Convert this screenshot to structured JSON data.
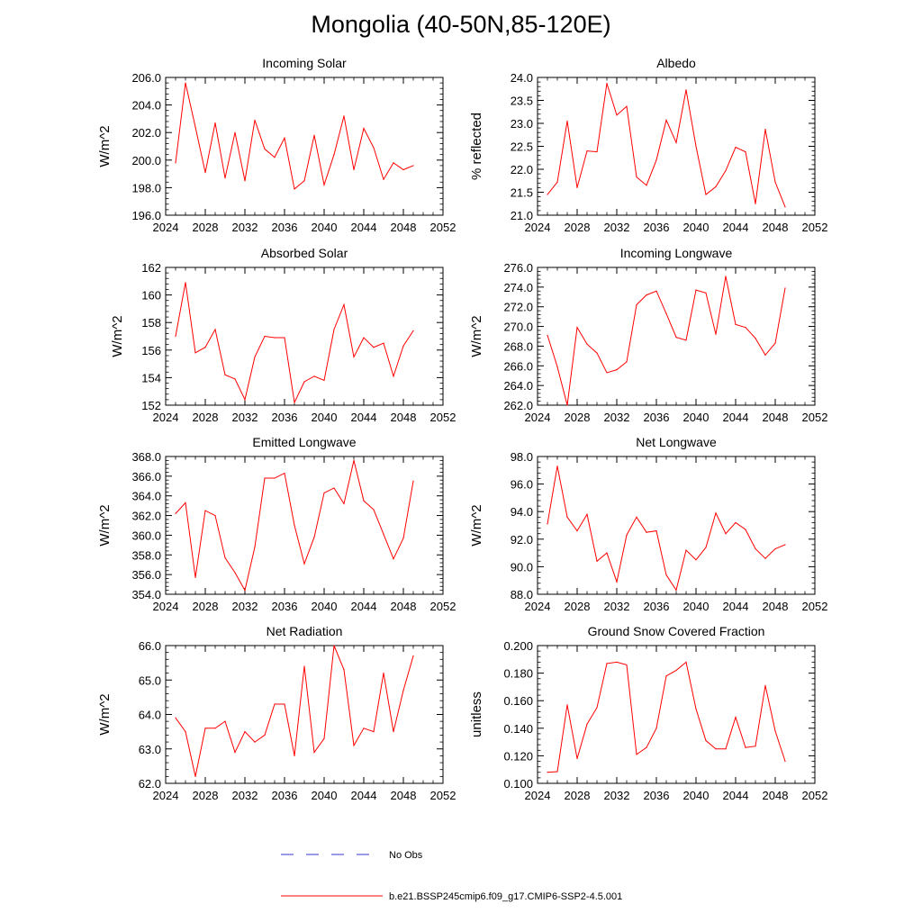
{
  "page_title": "Mongolia (40-50N,85-120E)",
  "legend": {
    "obs_label": "No Obs",
    "obs_color": "#3333cc",
    "model_label": "b.e21.BSSP245cmip6.f09_g17.CMIP6-SSP2-4.5.001",
    "model_color": "#ff0000"
  },
  "x_ticks": [
    "2024",
    "2028",
    "2032",
    "2036",
    "2040",
    "2044",
    "2048",
    "2052"
  ],
  "chart_data": [
    {
      "type": "line",
      "title": "Incoming Solar",
      "ylabel": "W/m^2",
      "xlim": [
        2024,
        2052
      ],
      "ylim": [
        196,
        206
      ],
      "yticks": [
        "196.0",
        "198.0",
        "200.0",
        "202.0",
        "204.0",
        "206.0"
      ],
      "x": [
        2025,
        2026,
        2027,
        2028,
        2029,
        2030,
        2031,
        2032,
        2033,
        2034,
        2035,
        2036,
        2037,
        2038,
        2039,
        2040,
        2041,
        2042,
        2043,
        2044,
        2045,
        2046,
        2047,
        2048,
        2049
      ],
      "series": [
        {
          "values": [
            199.8,
            205.6,
            202.4,
            199.1,
            202.7,
            198.7,
            202.0,
            198.5,
            202.9,
            200.8,
            200.2,
            201.6,
            197.9,
            198.5,
            201.8,
            198.2,
            200.4,
            203.2,
            199.3,
            202.3,
            200.9,
            198.6,
            199.8,
            199.3,
            199.6
          ]
        }
      ]
    },
    {
      "type": "line",
      "title": "Albedo",
      "ylabel": "% reflected",
      "xlim": [
        2024,
        2052
      ],
      "ylim": [
        21.0,
        24.0
      ],
      "yticks": [
        "21.0",
        "21.5",
        "22.0",
        "22.5",
        "23.0",
        "23.5",
        "24.0"
      ],
      "x": [
        2025,
        2026,
        2027,
        2028,
        2029,
        2030,
        2031,
        2032,
        2033,
        2034,
        2035,
        2036,
        2037,
        2038,
        2039,
        2040,
        2041,
        2042,
        2043,
        2044,
        2045,
        2046,
        2047,
        2048,
        2049
      ],
      "series": [
        {
          "values": [
            21.45,
            21.72,
            23.05,
            21.6,
            22.4,
            22.38,
            23.87,
            23.18,
            23.37,
            21.83,
            21.65,
            22.2,
            23.07,
            22.58,
            23.73,
            22.5,
            21.45,
            21.62,
            21.97,
            22.48,
            22.38,
            21.25,
            22.87,
            21.72,
            21.18
          ]
        }
      ]
    },
    {
      "type": "line",
      "title": "Absorbed Solar",
      "ylabel": "W/m^2",
      "xlim": [
        2024,
        2052
      ],
      "ylim": [
        152,
        162
      ],
      "yticks": [
        "152",
        "154",
        "156",
        "158",
        "160",
        "162"
      ],
      "x": [
        2025,
        2026,
        2027,
        2028,
        2029,
        2030,
        2031,
        2032,
        2033,
        2034,
        2035,
        2036,
        2037,
        2038,
        2039,
        2040,
        2041,
        2042,
        2043,
        2044,
        2045,
        2046,
        2047,
        2048,
        2049
      ],
      "series": [
        {
          "values": [
            157.0,
            160.9,
            155.8,
            156.2,
            157.5,
            154.2,
            153.9,
            152.4,
            155.5,
            157.0,
            156.9,
            156.9,
            152.2,
            153.7,
            154.1,
            153.8,
            157.5,
            159.3,
            155.5,
            156.9,
            156.2,
            156.5,
            154.1,
            156.3,
            157.4
          ]
        }
      ]
    },
    {
      "type": "line",
      "title": "Incoming Longwave",
      "ylabel": "W/m^2",
      "xlim": [
        2024,
        2052
      ],
      "ylim": [
        262,
        276
      ],
      "yticks": [
        "262.0",
        "264.0",
        "266.0",
        "268.0",
        "270.0",
        "272.0",
        "274.0",
        "276.0"
      ],
      "x": [
        2025,
        2026,
        2027,
        2028,
        2029,
        2030,
        2031,
        2032,
        2033,
        2034,
        2035,
        2036,
        2037,
        2038,
        2039,
        2040,
        2041,
        2042,
        2043,
        2044,
        2045,
        2046,
        2047,
        2048,
        2049
      ],
      "series": [
        {
          "values": [
            269.1,
            265.9,
            262.0,
            269.9,
            268.2,
            267.3,
            265.3,
            265.6,
            266.4,
            272.2,
            273.2,
            273.6,
            271.3,
            268.9,
            268.6,
            273.7,
            273.4,
            269.2,
            275.1,
            270.2,
            269.9,
            268.8,
            267.1,
            268.3,
            273.9
          ]
        }
      ]
    },
    {
      "type": "line",
      "title": "Emitted Longwave",
      "ylabel": "W/m^2",
      "xlim": [
        2024,
        2052
      ],
      "ylim": [
        354,
        368
      ],
      "yticks": [
        "354.0",
        "356.0",
        "358.0",
        "360.0",
        "362.0",
        "364.0",
        "366.0",
        "368.0"
      ],
      "x": [
        2025,
        2026,
        2027,
        2028,
        2029,
        2030,
        2031,
        2032,
        2033,
        2034,
        2035,
        2036,
        2037,
        2038,
        2039,
        2040,
        2041,
        2042,
        2043,
        2044,
        2045,
        2046,
        2047,
        2048,
        2049
      ],
      "series": [
        {
          "values": [
            362.2,
            363.3,
            355.7,
            362.5,
            362.0,
            357.7,
            356.2,
            354.4,
            358.8,
            365.8,
            365.8,
            366.3,
            361.0,
            357.1,
            359.8,
            364.3,
            364.8,
            363.2,
            367.6,
            363.5,
            362.6,
            360.1,
            357.6,
            359.7,
            365.5
          ]
        }
      ]
    },
    {
      "type": "line",
      "title": "Net Longwave",
      "ylabel": "W/m^2",
      "xlim": [
        2024,
        2052
      ],
      "ylim": [
        88,
        98
      ],
      "yticks": [
        "88.0",
        "90.0",
        "92.0",
        "94.0",
        "96.0",
        "98.0"
      ],
      "x": [
        2025,
        2026,
        2027,
        2028,
        2029,
        2030,
        2031,
        2032,
        2033,
        2034,
        2035,
        2036,
        2037,
        2038,
        2039,
        2040,
        2041,
        2042,
        2043,
        2044,
        2045,
        2046,
        2047,
        2048,
        2049
      ],
      "series": [
        {
          "values": [
            93.1,
            97.3,
            93.6,
            92.6,
            93.8,
            90.4,
            91.0,
            88.9,
            92.3,
            93.6,
            92.5,
            92.6,
            89.4,
            88.3,
            91.2,
            90.5,
            91.4,
            93.9,
            92.4,
            93.2,
            92.7,
            91.3,
            90.6,
            91.3,
            91.6
          ]
        }
      ]
    },
    {
      "type": "line",
      "title": "Net Radiation",
      "ylabel": "W/m^2",
      "xlim": [
        2024,
        2052
      ],
      "ylim": [
        62,
        66
      ],
      "yticks": [
        "62.0",
        "63.0",
        "64.0",
        "65.0",
        "66.0"
      ],
      "x": [
        2025,
        2026,
        2027,
        2028,
        2029,
        2030,
        2031,
        2032,
        2033,
        2034,
        2035,
        2036,
        2037,
        2038,
        2039,
        2040,
        2041,
        2042,
        2043,
        2044,
        2045,
        2046,
        2047,
        2048,
        2049
      ],
      "series": [
        {
          "values": [
            63.9,
            63.5,
            62.2,
            63.6,
            63.6,
            63.8,
            62.9,
            63.5,
            63.2,
            63.4,
            64.3,
            64.3,
            62.8,
            65.4,
            62.9,
            63.3,
            66.0,
            65.3,
            63.1,
            63.6,
            63.5,
            65.2,
            63.5,
            64.7,
            65.7
          ]
        }
      ]
    },
    {
      "type": "line",
      "title": "Ground Snow Covered Fraction",
      "ylabel": "unitless",
      "xlim": [
        2024,
        2052
      ],
      "ylim": [
        0.1,
        0.2
      ],
      "yticks": [
        "0.100",
        "0.120",
        "0.140",
        "0.160",
        "0.180",
        "0.200"
      ],
      "x": [
        2025,
        2026,
        2027,
        2028,
        2029,
        2030,
        2031,
        2032,
        2033,
        2034,
        2035,
        2036,
        2037,
        2038,
        2039,
        2040,
        2041,
        2042,
        2043,
        2044,
        2045,
        2046,
        2047,
        2048,
        2049
      ],
      "series": [
        {
          "values": [
            0.108,
            0.1085,
            0.157,
            0.118,
            0.143,
            0.155,
            0.187,
            0.188,
            0.186,
            0.121,
            0.126,
            0.14,
            0.178,
            0.182,
            0.188,
            0.154,
            0.131,
            0.125,
            0.125,
            0.148,
            0.126,
            0.127,
            0.171,
            0.138,
            0.116
          ]
        }
      ]
    }
  ]
}
